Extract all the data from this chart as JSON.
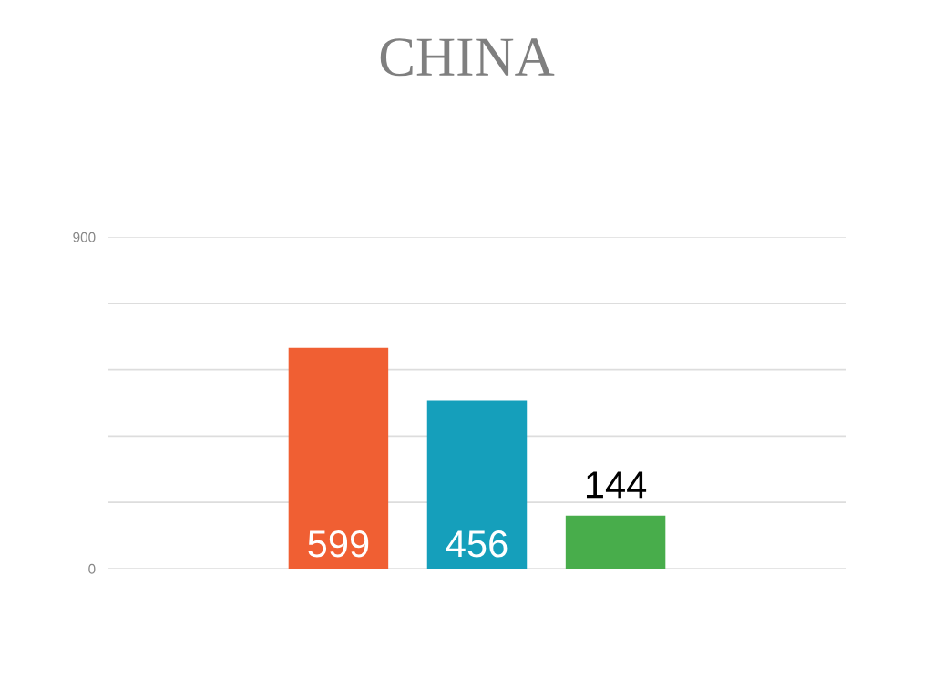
{
  "chart_data": {
    "type": "bar",
    "title": "CHINA",
    "categories": [
      null,
      null,
      null
    ],
    "values": [
      599,
      456,
      144
    ],
    "colors": [
      "#f05f33",
      "#159fbb",
      "#48ad4b"
    ],
    "ylim": [
      0,
      900
    ],
    "yticks": [
      0,
      {
        "value": 180,
        "label": null
      },
      {
        "value": 360,
        "label": null
      },
      {
        "value": 540,
        "label": null
      },
      {
        "value": 720,
        "label": null
      },
      900
    ],
    "grid": "y",
    "data_labels": true,
    "legend": false
  }
}
